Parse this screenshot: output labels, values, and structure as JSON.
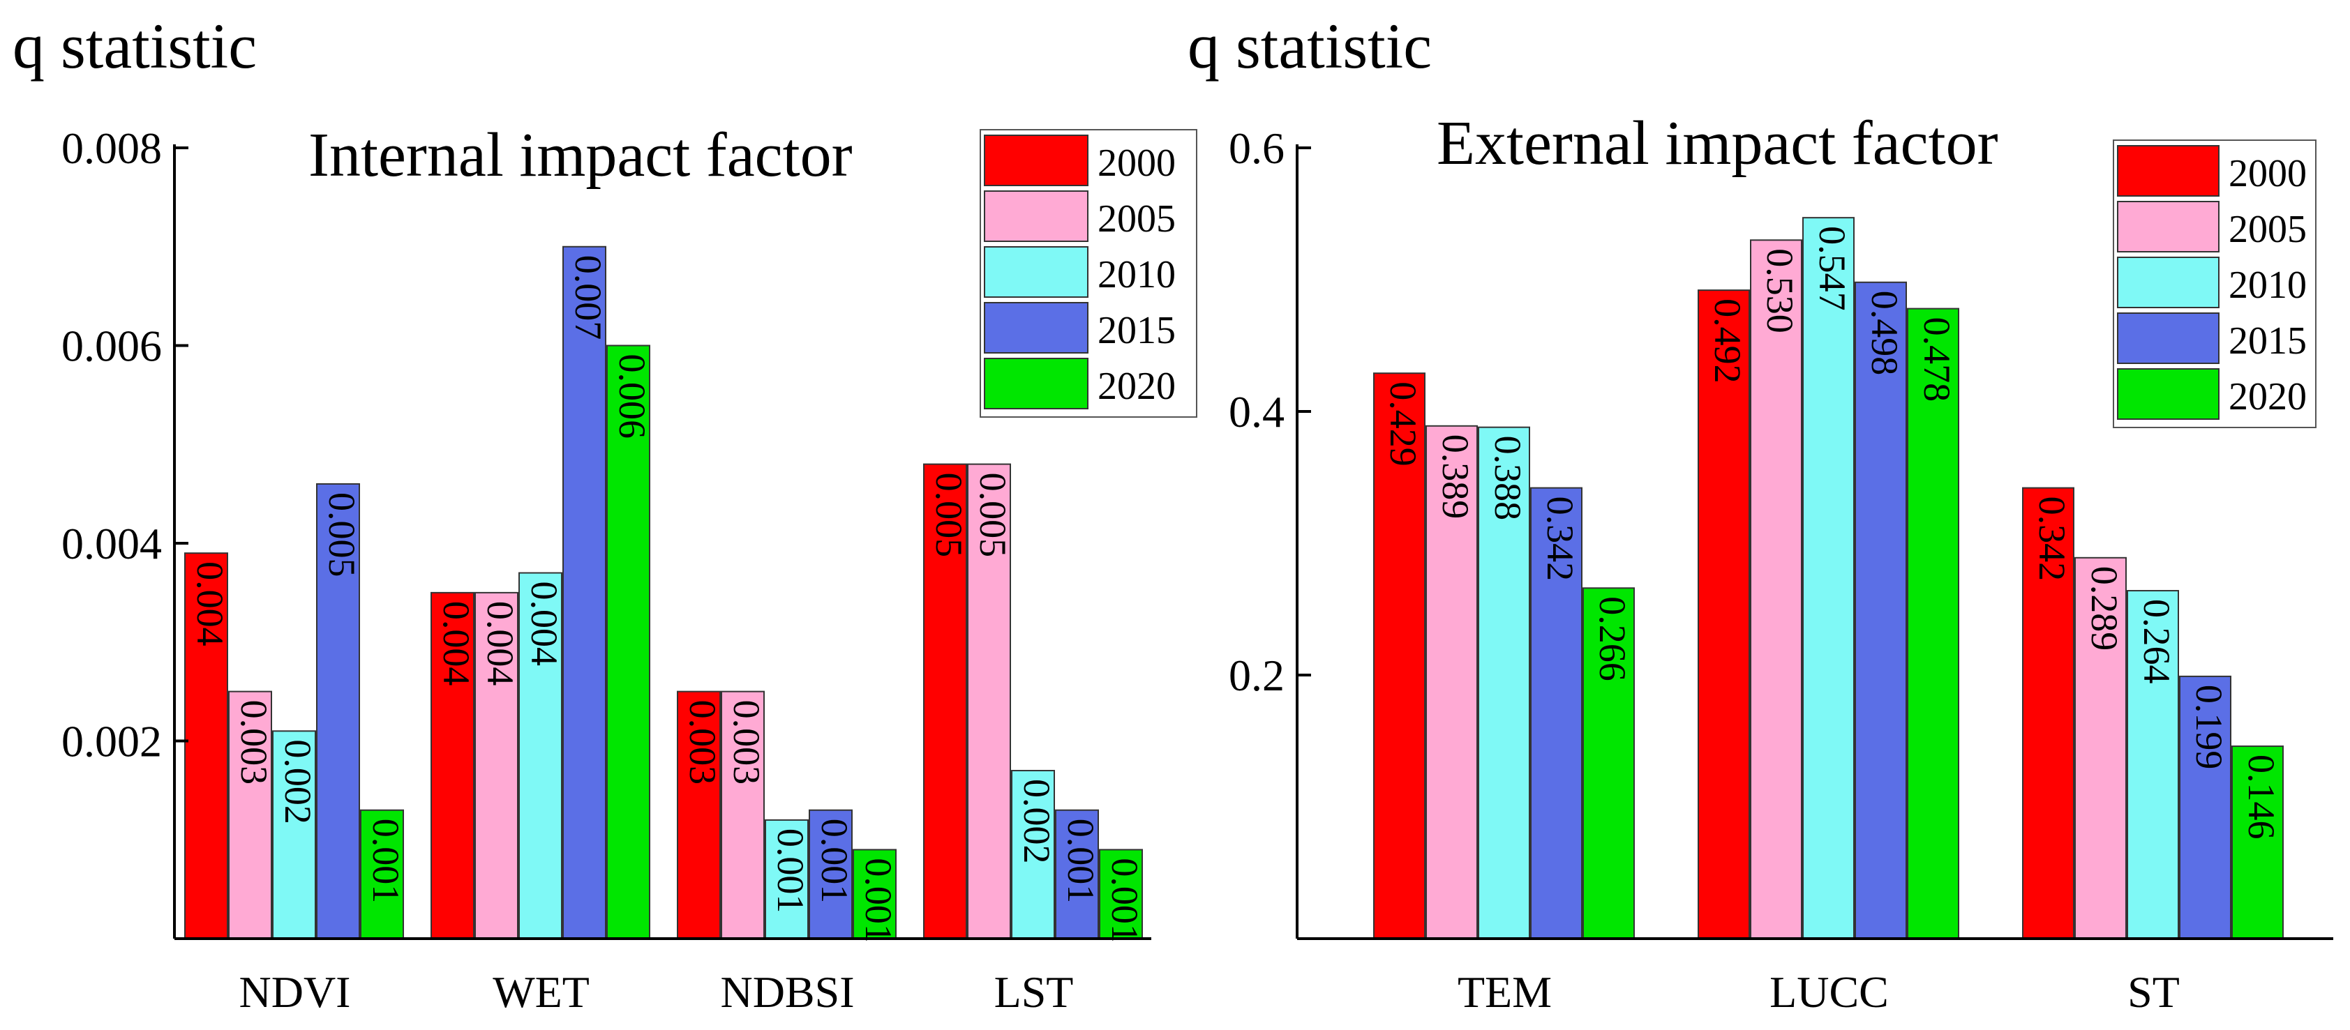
{
  "chart_data": [
    {
      "type": "bar",
      "ylabel": "q statistic",
      "title": "Internal impact factor",
      "categories": [
        "NDVI",
        "WET",
        "NDBSI",
        "LST"
      ],
      "ylim": [
        0,
        0.008
      ],
      "yticks": [
        "0.002",
        "0.004",
        "0.006",
        "0.008"
      ],
      "ytick_values": [
        0.002,
        0.004,
        0.006,
        0.008
      ],
      "legend_position": "top-right",
      "grid": false,
      "series": [
        {
          "name": "2000",
          "color": "#ff0000",
          "values": [
            0.0039,
            0.0035,
            0.0025,
            0.0048
          ],
          "labels": [
            "0.004",
            "0.004",
            "0.003",
            "0.005"
          ]
        },
        {
          "name": "2005",
          "color": "#ffaad4",
          "values": [
            0.0025,
            0.0035,
            0.0025,
            0.0048
          ],
          "labels": [
            "0.003",
            "0.004",
            "0.003",
            "0.005"
          ]
        },
        {
          "name": "2010",
          "color": "#7ff9f6",
          "values": [
            0.0021,
            0.0037,
            0.0012,
            0.0017
          ],
          "labels": [
            "0.002",
            "0.004",
            "0.001",
            "0.002"
          ]
        },
        {
          "name": "2015",
          "color": "#5b6fe6",
          "values": [
            0.0046,
            0.007,
            0.0013,
            0.0013
          ],
          "labels": [
            "0.005",
            "0.007",
            "0.001",
            "0.001"
          ]
        },
        {
          "name": "2020",
          "color": "#00e600",
          "values": [
            0.0013,
            0.006,
            0.0009,
            0.0009
          ],
          "labels": [
            "0.001",
            "0.006",
            "0.001",
            "0.001"
          ]
        }
      ]
    },
    {
      "type": "bar",
      "ylabel": "q statistic",
      "title": "External impact factor",
      "categories": [
        "TEM",
        "LUCC",
        "ST"
      ],
      "ylim": [
        0,
        0.6
      ],
      "yticks": [
        "0.2",
        "0.4",
        "0.6"
      ],
      "ytick_values": [
        0.2,
        0.4,
        0.6
      ],
      "legend_position": "top-right",
      "grid": false,
      "series": [
        {
          "name": "2000",
          "color": "#ff0000",
          "values": [
            0.429,
            0.492,
            0.342
          ],
          "labels": [
            "0.429",
            "0.492",
            "0.342"
          ]
        },
        {
          "name": "2005",
          "color": "#ffaad4",
          "values": [
            0.389,
            0.53,
            0.289
          ],
          "labels": [
            "0.389",
            "0.530",
            "0.289"
          ]
        },
        {
          "name": "2010",
          "color": "#7ff9f6",
          "values": [
            0.388,
            0.547,
            0.264
          ],
          "labels": [
            "0.388",
            "0.547",
            "0.264"
          ]
        },
        {
          "name": "2015",
          "color": "#5b6fe6",
          "values": [
            0.342,
            0.498,
            0.199
          ],
          "labels": [
            "0.342",
            "0.498",
            "0.199"
          ]
        },
        {
          "name": "2020",
          "color": "#00e600",
          "values": [
            0.266,
            0.478,
            0.146
          ],
          "labels": [
            "0.266",
            "0.478",
            "0.146"
          ]
        }
      ]
    }
  ]
}
